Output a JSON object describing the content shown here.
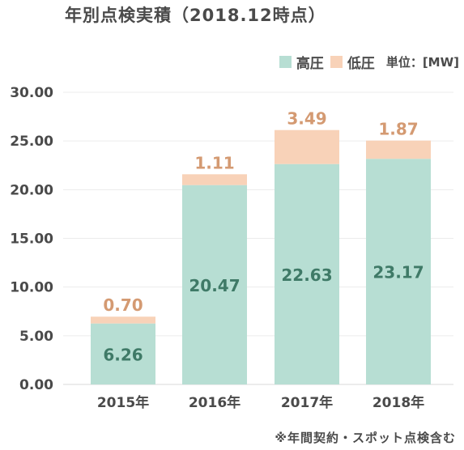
{
  "chart_data": {
    "type": "bar",
    "stacked": true,
    "title": "年別点検実積（2018.12時点）",
    "categories": [
      "2015年",
      "2016年",
      "2017年",
      "2018年"
    ],
    "series": [
      {
        "name": "高圧",
        "values": [
          6.26,
          20.47,
          22.63,
          23.17
        ],
        "color": "#b7ded3",
        "label_color": "#3f7a67",
        "label_values": [
          "6.26",
          "20.47",
          "22.63",
          "23.17"
        ]
      },
      {
        "name": "低圧",
        "values": [
          0.7,
          1.11,
          3.49,
          1.87
        ],
        "color": "#f8d2b8",
        "label_color": "#d49a72",
        "label_values": [
          "0.70",
          "1.11",
          "3.49",
          "1.87"
        ]
      }
    ],
    "ylim": [
      0,
      30
    ],
    "yticks": [
      "0.00",
      "5.00",
      "10.00",
      "15.00",
      "20.00",
      "25.00",
      "30.00"
    ],
    "ytick_values": [
      0,
      5,
      10,
      15,
      20,
      25,
      30
    ],
    "unit": "単位：[MW]",
    "legend_position": "top-right",
    "grid": true,
    "footnote": "※年間契約・スポット点検含む"
  }
}
